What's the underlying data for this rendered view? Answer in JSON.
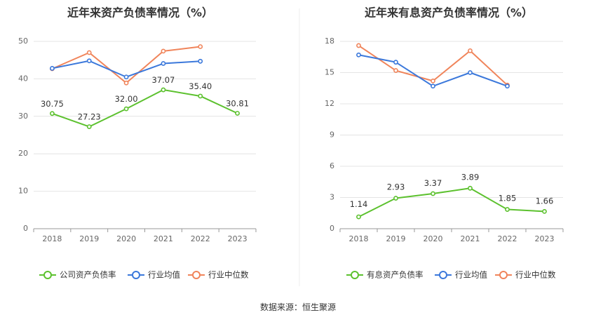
{
  "colors": {
    "company": "#5cc12e",
    "average": "#3b78db",
    "median": "#f0845a",
    "grid": "#e4e4e4",
    "axis": "#999999"
  },
  "footer": {
    "source": "数据来源：恒生聚源"
  },
  "chart_data": [
    {
      "type": "line",
      "title": "近年来资产负债率情况（%）",
      "x": [
        "2018",
        "2019",
        "2020",
        "2021",
        "2022",
        "2023"
      ],
      "ylim": [
        0,
        50
      ],
      "yticks": [
        0,
        10,
        20,
        30,
        40,
        50
      ],
      "grid": true,
      "legend_position": "bottom",
      "series": [
        {
          "name": "公司资产负债率",
          "key": "company",
          "values": [
            30.75,
            27.23,
            32.0,
            37.07,
            35.4,
            30.81
          ],
          "labels": [
            "30.75",
            "27.23",
            "32.00",
            "37.07",
            "35.40",
            "30.81"
          ]
        },
        {
          "name": "行业均值",
          "key": "average",
          "values": [
            42.8,
            44.8,
            40.5,
            44.1,
            44.7,
            null
          ]
        },
        {
          "name": "行业中位数",
          "key": "median",
          "values": [
            42.7,
            47.0,
            38.9,
            47.4,
            48.6,
            null
          ]
        }
      ]
    },
    {
      "type": "line",
      "title": "近年来有息资产负债率情况（%）",
      "x": [
        "2018",
        "2019",
        "2020",
        "2021",
        "2022",
        "2023"
      ],
      "ylim": [
        0,
        18
      ],
      "yticks": [
        0,
        3,
        6,
        9,
        12,
        15,
        18
      ],
      "grid": true,
      "legend_position": "bottom",
      "series": [
        {
          "name": "有息资产负债率",
          "key": "company",
          "values": [
            1.14,
            2.93,
            3.37,
            3.89,
            1.85,
            1.66
          ],
          "labels": [
            "1.14",
            "2.93",
            "3.37",
            "3.89",
            "1.85",
            "1.66"
          ]
        },
        {
          "name": "行业均值",
          "key": "average",
          "values": [
            16.7,
            16.0,
            13.7,
            15.0,
            13.7,
            null
          ]
        },
        {
          "name": "行业中位数",
          "key": "median",
          "values": [
            17.6,
            15.2,
            14.2,
            17.1,
            13.8,
            null
          ]
        }
      ]
    }
  ]
}
